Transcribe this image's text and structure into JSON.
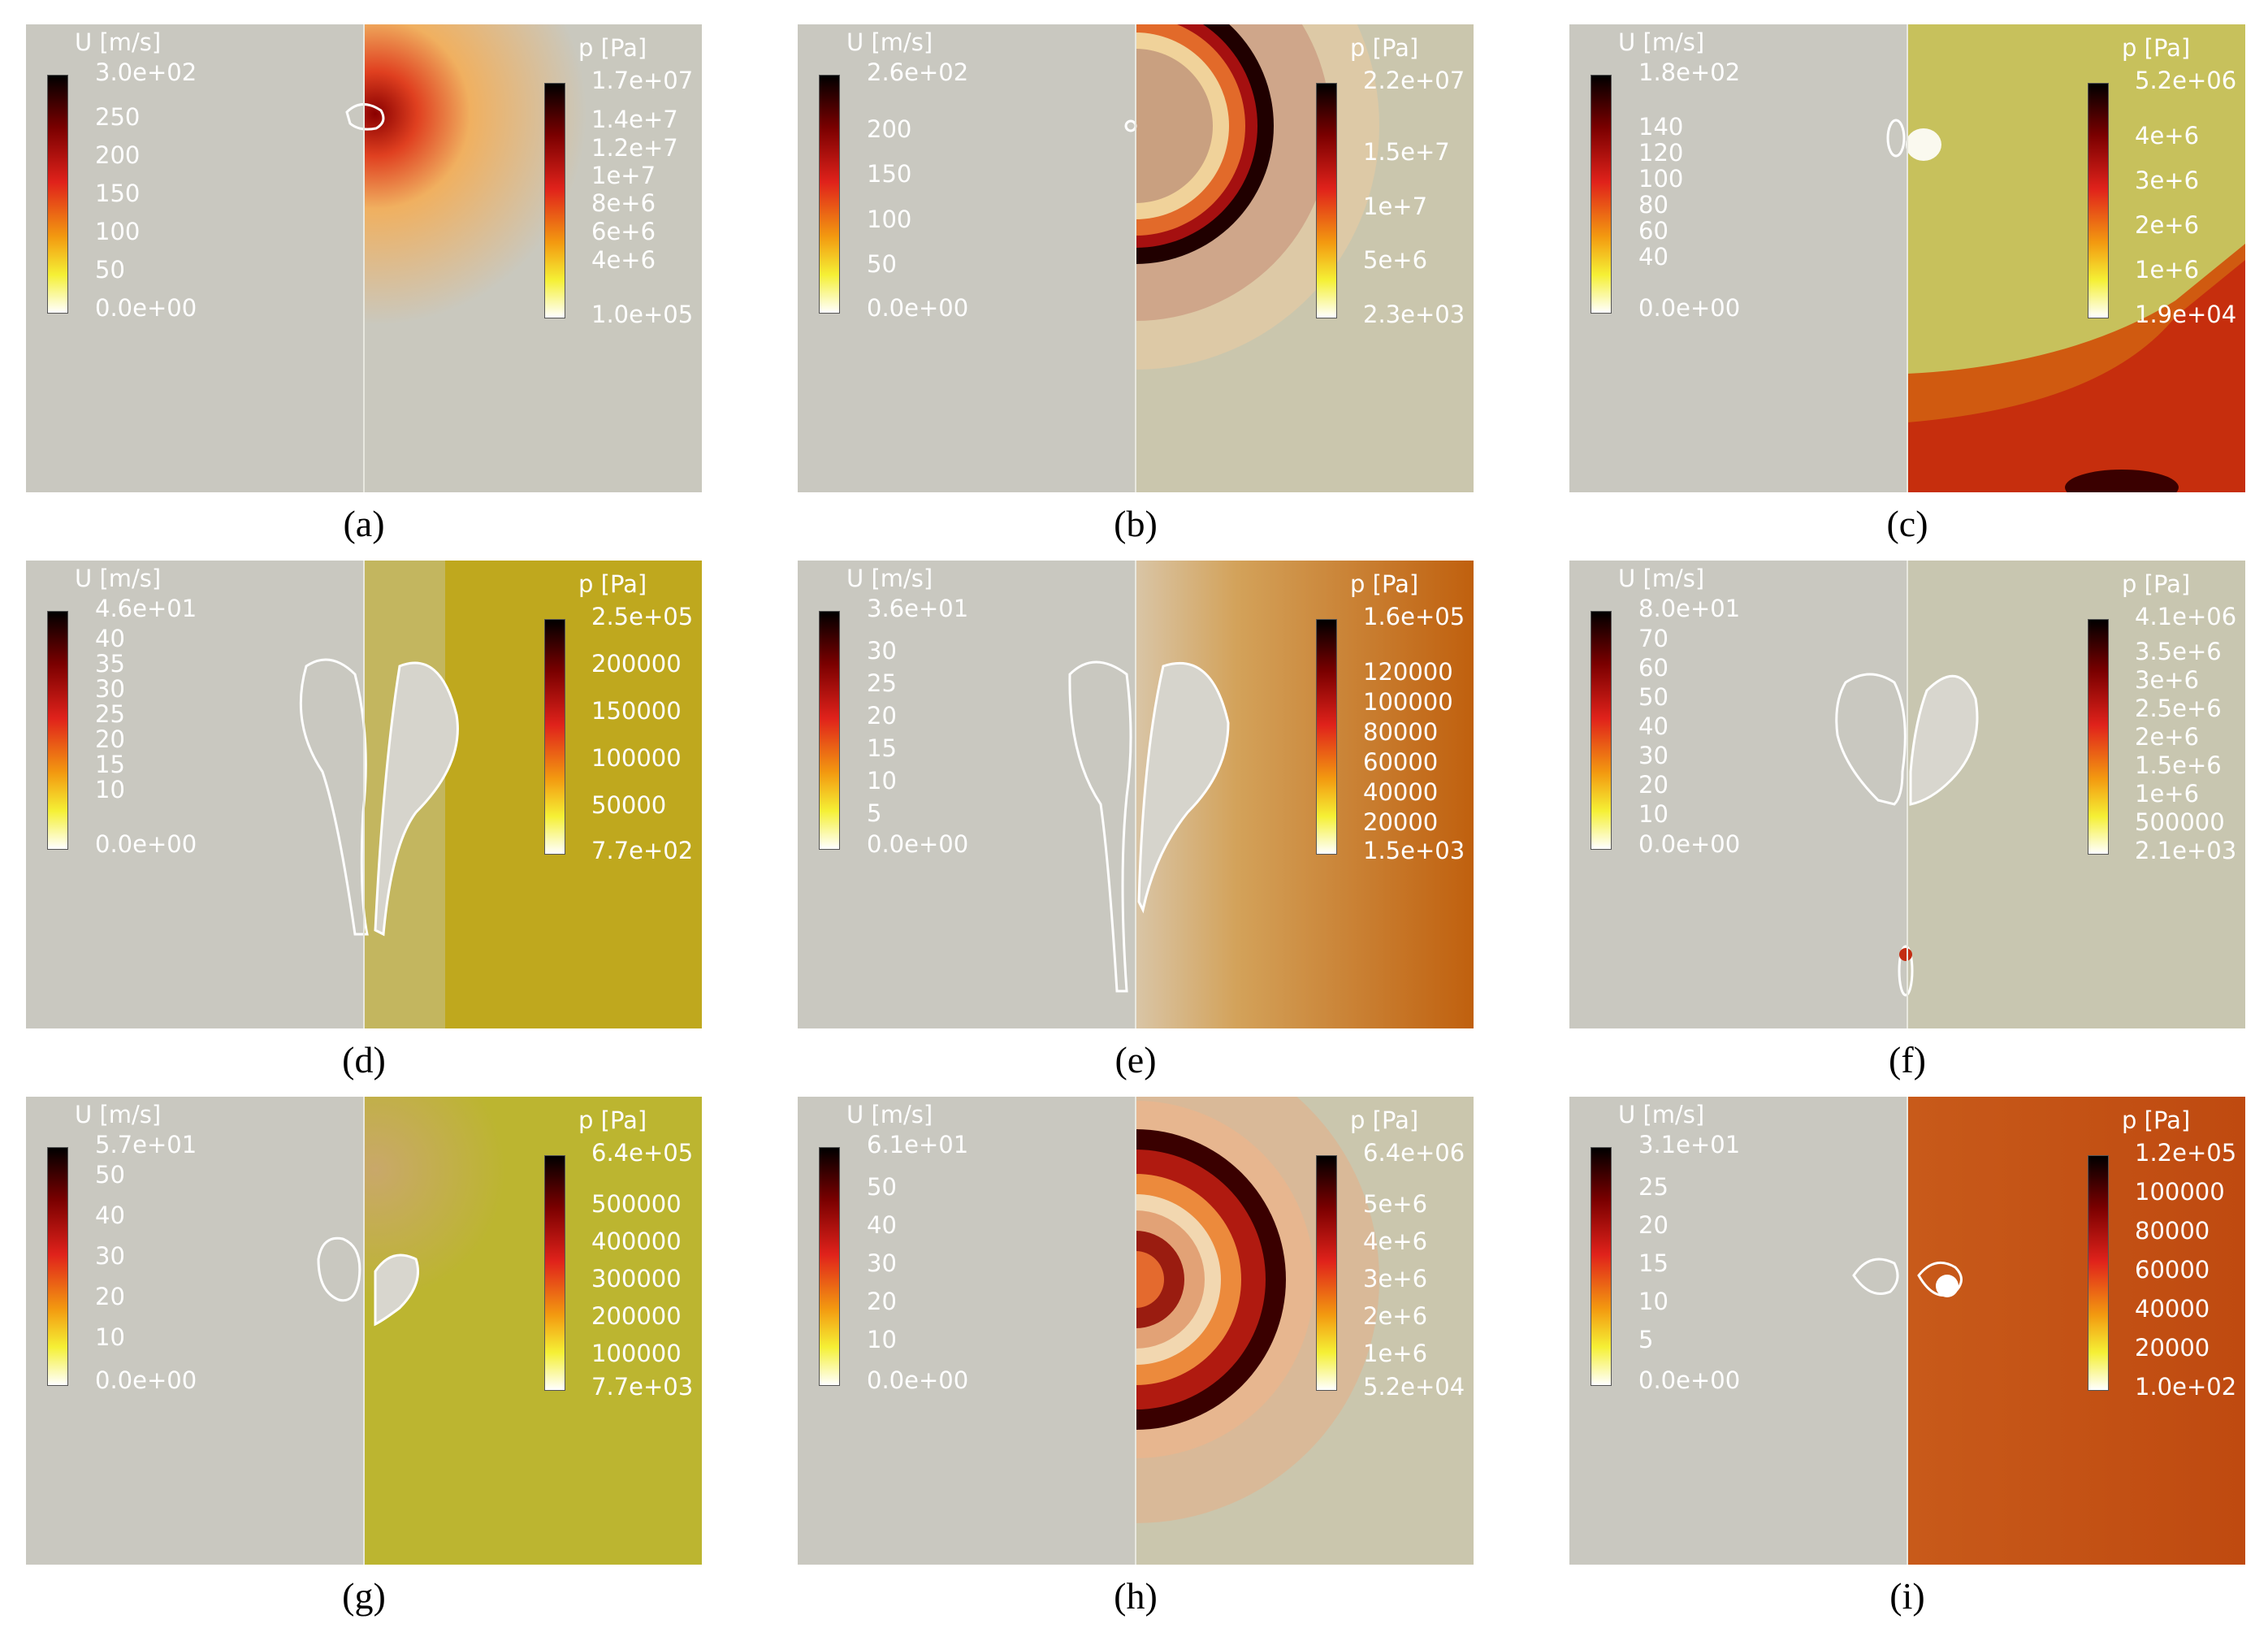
{
  "figure": {
    "panels": [
      {
        "caption": "(a)",
        "u_title": "U [m/s]",
        "u_ticks": [
          "3.0e+02",
          "250",
          "200",
          "150",
          "100",
          "50",
          "0.0e+00"
        ],
        "p_title": "p [Pa]",
        "p_ticks": [
          "1.7e+07",
          "1.4e+7",
          "1.2e+7",
          "1e+7",
          "8e+6",
          "6e+6",
          "4e+6",
          "1.0e+05"
        ],
        "bg_color": "#c9c8be"
      },
      {
        "caption": "(b)",
        "u_title": "U [m/s]",
        "u_ticks": [
          "2.6e+02",
          "200",
          "150",
          "100",
          "50",
          "0.0e+00"
        ],
        "p_title": "p [Pa]",
        "p_ticks": [
          "2.2e+07",
          "1.5e+7",
          "1e+7",
          "5e+6",
          "2.3e+03"
        ],
        "bg_color": "#c9c8be"
      },
      {
        "caption": "(c)",
        "u_title": "U [m/s]",
        "u_ticks": [
          "1.8e+02",
          "140",
          "120",
          "100",
          "80",
          "60",
          "40",
          "0.0e+00"
        ],
        "p_title": "p [Pa]",
        "p_ticks": [
          "5.2e+06",
          "4e+6",
          "3e+6",
          "2e+6",
          "1e+6",
          "1.9e+04"
        ],
        "bg_color": "#c7c15c"
      },
      {
        "caption": "(d)",
        "u_title": "U [m/s]",
        "u_ticks": [
          "4.6e+01",
          "40",
          "35",
          "30",
          "25",
          "20",
          "15",
          "10",
          "0.0e+00"
        ],
        "p_title": "p [Pa]",
        "p_ticks": [
          "2.5e+05",
          "200000",
          "150000",
          "100000",
          "50000",
          "7.7e+02"
        ],
        "bg_color": "#bfa81e"
      },
      {
        "caption": "(e)",
        "u_title": "U [m/s]",
        "u_ticks": [
          "3.6e+01",
          "30",
          "25",
          "20",
          "15",
          "10",
          "5",
          "0.0e+00"
        ],
        "p_title": "p [Pa]",
        "p_ticks": [
          "1.6e+05",
          "120000",
          "100000",
          "80000",
          "60000",
          "40000",
          "20000",
          "1.5e+03"
        ],
        "bg_color": "#c47a18"
      },
      {
        "caption": "(f)",
        "u_title": "U [m/s]",
        "u_ticks": [
          "8.0e+01",
          "70",
          "60",
          "50",
          "40",
          "30",
          "20",
          "10",
          "0.0e+00"
        ],
        "p_title": "p [Pa]",
        "p_ticks": [
          "4.1e+06",
          "3.5e+6",
          "3e+6",
          "2.5e+6",
          "2e+6",
          "1.5e+6",
          "1e+6",
          "500000",
          "2.1e+03"
        ],
        "bg_color": "#c8c6b0"
      },
      {
        "caption": "(g)",
        "u_title": "U [m/s]",
        "u_ticks": [
          "5.7e+01",
          "50",
          "40",
          "30",
          "20",
          "10",
          "0.0e+00"
        ],
        "p_title": "p [Pa]",
        "p_ticks": [
          "6.4e+05",
          "500000",
          "400000",
          "300000",
          "200000",
          "100000",
          "7.7e+03"
        ],
        "bg_color": "#bcb530"
      },
      {
        "caption": "(h)",
        "u_title": "U [m/s]",
        "u_ticks": [
          "6.1e+01",
          "50",
          "40",
          "30",
          "20",
          "10",
          "0.0e+00"
        ],
        "p_title": "p [Pa]",
        "p_ticks": [
          "6.4e+06",
          "5e+6",
          "4e+6",
          "3e+6",
          "2e+6",
          "1e+6",
          "5.2e+04"
        ],
        "bg_color": "#c9c8be"
      },
      {
        "caption": "(i)",
        "u_title": "U [m/s]",
        "u_ticks": [
          "3.1e+01",
          "25",
          "20",
          "15",
          "10",
          "5",
          "0.0e+00"
        ],
        "p_title": "p [Pa]",
        "p_ticks": [
          "1.2e+05",
          "100000",
          "80000",
          "60000",
          "40000",
          "20000",
          "1.0e+02"
        ],
        "bg_color": "#bf4a10"
      }
    ]
  }
}
